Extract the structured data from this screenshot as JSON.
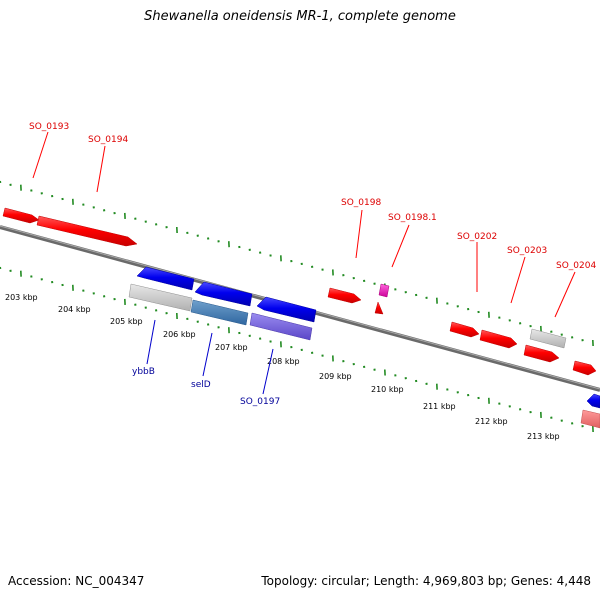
{
  "title": "Shewanella oneidensis MR-1, complete genome",
  "footer": {
    "accession": "Accession: NC_004347",
    "summary": "Topology: circular; Length: 4,969,803 bp; Genes: 4,448"
  },
  "colors": {
    "forward_gene": "#ff0000",
    "reverse_gene": "#0000ee",
    "forward_label": "#dd0000",
    "reverse_label": "#000099",
    "tick": "#228b22",
    "backbone": "#808080"
  },
  "kbp_labels": [
    "203 kbp",
    "204 kbp",
    "205 kbp",
    "206 kbp",
    "207 kbp",
    "208 kbp",
    "209 kbp",
    "210 kbp",
    "211 kbp",
    "212 kbp",
    "213 kbp"
  ],
  "gene_labels": {
    "forward": [
      "SO_0193",
      "SO_0194",
      "SO_0198",
      "SO_0198.1",
      "SO_0202",
      "SO_0203",
      "SO_0204"
    ],
    "reverse": [
      "ybbB",
      "selD",
      "SO_0197"
    ]
  }
}
